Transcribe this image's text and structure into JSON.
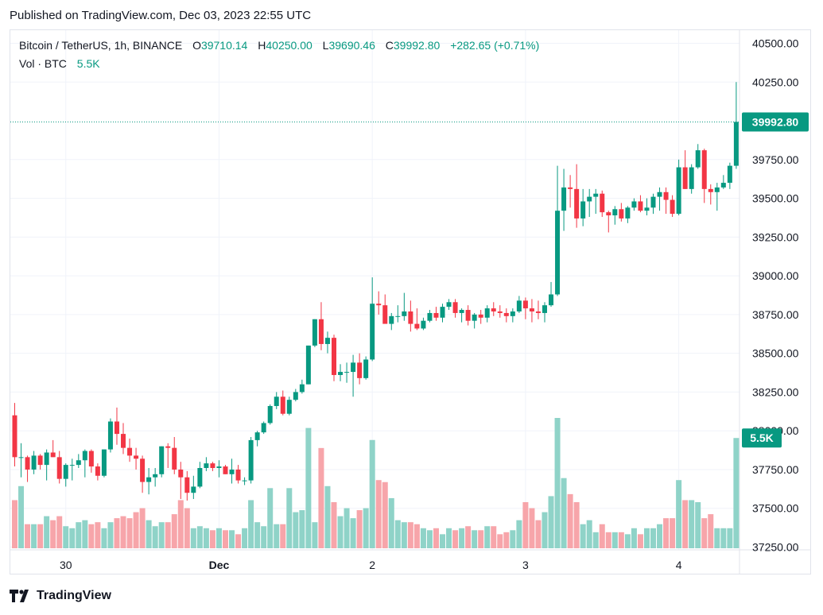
{
  "header": {
    "published": "Published on TradingView.com, Dec 03, 2023 22:55 UTC"
  },
  "legend": {
    "symbol": "Bitcoin / TetherUS, 1h, BINANCE",
    "o_label": "O",
    "o": "39710.14",
    "h_label": "H",
    "h": "40250.00",
    "l_label": "L",
    "l": "39690.46",
    "c_label": "C",
    "c": "39992.80",
    "change": "+282.65 (+0.71%)",
    "vol_label": "Vol · BTC",
    "vol": "5.5K"
  },
  "footer": {
    "brand": "TradingView"
  },
  "colors": {
    "up": "#089981",
    "down": "#f23645",
    "vol_up": "#8fd3c8",
    "vol_down": "#f7a5aa",
    "grid": "#f0f3fa"
  },
  "chart_data": {
    "type": "candlestick",
    "y_ticks": [
      "40500.00",
      "40250.00",
      "39750.00",
      "39500.00",
      "39250.00",
      "39000.00",
      "38750.00",
      "38500.00",
      "38250.00",
      "38000.00",
      "37750.00",
      "37500.00",
      "37250.00"
    ],
    "y_tick_values": [
      40500,
      40250,
      39750,
      39500,
      39250,
      39000,
      38750,
      38500,
      38250,
      38000,
      37750,
      37500,
      37250
    ],
    "ylim": [
      37250,
      40500
    ],
    "x_ticks": [
      {
        "label": "30",
        "hour": 8,
        "bold": false
      },
      {
        "label": "Dec",
        "hour": 32,
        "bold": true
      },
      {
        "label": "2",
        "hour": 56,
        "bold": false
      },
      {
        "label": "3",
        "hour": 80,
        "bold": false
      },
      {
        "label": "4",
        "hour": 104,
        "bold": false
      }
    ],
    "last_price_label": "39992.80",
    "last_price": 39992.8,
    "last_volume_label": "5.5K",
    "volume_axis_max": 6.5,
    "candles": [
      [
        38100,
        38180,
        37770,
        37830,
        2.4
      ],
      [
        37830,
        37920,
        37700,
        37830,
        3.1
      ],
      [
        37830,
        37840,
        37670,
        37750,
        1.2
      ],
      [
        37750,
        37870,
        37720,
        37840,
        1.2
      ],
      [
        37840,
        37850,
        37750,
        37780,
        1.2
      ],
      [
        37780,
        37880,
        37680,
        37860,
        1.6
      ],
      [
        37860,
        37940,
        37830,
        37830,
        1.4
      ],
      [
        37830,
        37870,
        37660,
        37690,
        1.6
      ],
      [
        37690,
        37790,
        37640,
        37780,
        1.1
      ],
      [
        37780,
        37820,
        37680,
        37780,
        1.0
      ],
      [
        37780,
        37850,
        37760,
        37810,
        1.3
      ],
      [
        37810,
        37880,
        37700,
        37870,
        1.4
      ],
      [
        37870,
        37880,
        37730,
        37770,
        1.2
      ],
      [
        37770,
        37790,
        37680,
        37710,
        1.3
      ],
      [
        37710,
        37880,
        37700,
        37880,
        1.0
      ],
      [
        37880,
        38080,
        37860,
        38060,
        1.3
      ],
      [
        38060,
        38150,
        37910,
        37980,
        1.5
      ],
      [
        37980,
        38050,
        37850,
        37890,
        1.6
      ],
      [
        37890,
        37950,
        37800,
        37840,
        1.5
      ],
      [
        37840,
        37890,
        37750,
        37820,
        1.8
      ],
      [
        37820,
        37840,
        37600,
        37670,
        2.0
      ],
      [
        37670,
        37760,
        37590,
        37700,
        1.4
      ],
      [
        37700,
        37760,
        37640,
        37720,
        1.1
      ],
      [
        37720,
        37900,
        37700,
        37900,
        1.3
      ],
      [
        37900,
        37920,
        37760,
        37890,
        1.3
      ],
      [
        37890,
        37960,
        37720,
        37750,
        1.7
      ],
      [
        37750,
        37800,
        37560,
        37700,
        2.4
      ],
      [
        37700,
        37740,
        37550,
        37600,
        2.0
      ],
      [
        37600,
        37710,
        37560,
        37640,
        1.0
      ],
      [
        37640,
        37800,
        37630,
        37760,
        1.1
      ],
      [
        37760,
        37830,
        37740,
        37790,
        1.0
      ],
      [
        37790,
        37800,
        37740,
        37760,
        0.9
      ],
      [
        37760,
        37810,
        37700,
        37770,
        1.0
      ],
      [
        37770,
        37780,
        37720,
        37720,
        0.9
      ],
      [
        37720,
        37820,
        37660,
        37750,
        0.9
      ],
      [
        37750,
        37780,
        37660,
        37680,
        0.7
      ],
      [
        37680,
        37700,
        37650,
        37680,
        1.0
      ],
      [
        37680,
        37960,
        37660,
        37940,
        2.4
      ],
      [
        37940,
        38000,
        37900,
        37990,
        1.3
      ],
      [
        37990,
        38060,
        37980,
        38050,
        1.1
      ],
      [
        38050,
        38170,
        38040,
        38160,
        3.0
      ],
      [
        38160,
        38250,
        38140,
        38220,
        1.2
      ],
      [
        38220,
        38260,
        38100,
        38110,
        1.2
      ],
      [
        38110,
        38220,
        38100,
        38200,
        3.0
      ],
      [
        38200,
        38270,
        38190,
        38250,
        1.8
      ],
      [
        38250,
        38330,
        38240,
        38300,
        1.9
      ],
      [
        38300,
        38550,
        38300,
        38550,
        6.0
      ],
      [
        38550,
        38720,
        38540,
        38720,
        1.3
      ],
      [
        38720,
        38830,
        38520,
        38560,
        5.0
      ],
      [
        38560,
        38640,
        38500,
        38600,
        3.1
      ],
      [
        38600,
        38620,
        38320,
        38360,
        2.3
      ],
      [
        38360,
        38430,
        38320,
        38380,
        1.6
      ],
      [
        38380,
        38440,
        38310,
        38380,
        2.0
      ],
      [
        38380,
        38490,
        38220,
        38440,
        1.5
      ],
      [
        38440,
        38500,
        38300,
        38340,
        1.9
      ],
      [
        38340,
        38480,
        38330,
        38460,
        2.0
      ],
      [
        38460,
        38990,
        38450,
        38820,
        5.4
      ],
      [
        38820,
        38900,
        38750,
        38810,
        3.4
      ],
      [
        38810,
        38880,
        38700,
        38690,
        3.3
      ],
      [
        38690,
        38760,
        38650,
        38740,
        2.5
      ],
      [
        38740,
        38810,
        38700,
        38740,
        1.4
      ],
      [
        38740,
        38890,
        38710,
        38770,
        1.3
      ],
      [
        38770,
        38840,
        38640,
        38690,
        1.3
      ],
      [
        38690,
        38790,
        38650,
        38660,
        1.2
      ],
      [
        38660,
        38730,
        38650,
        38710,
        1.0
      ],
      [
        38710,
        38780,
        38700,
        38760,
        0.9
      ],
      [
        38760,
        38800,
        38710,
        38730,
        1.0
      ],
      [
        38730,
        38820,
        38700,
        38800,
        0.7
      ],
      [
        38800,
        38850,
        38780,
        38830,
        1.0
      ],
      [
        38830,
        38850,
        38730,
        38760,
        0.9
      ],
      [
        38760,
        38790,
        38700,
        38780,
        1.0
      ],
      [
        38780,
        38810,
        38680,
        38710,
        1.1
      ],
      [
        38710,
        38760,
        38660,
        38750,
        0.9
      ],
      [
        38750,
        38780,
        38690,
        38730,
        0.9
      ],
      [
        38730,
        38810,
        38700,
        38790,
        1.1
      ],
      [
        38790,
        38830,
        38740,
        38770,
        1.1
      ],
      [
        38770,
        38810,
        38730,
        38760,
        0.7
      ],
      [
        38760,
        38790,
        38700,
        38740,
        0.8
      ],
      [
        38740,
        38790,
        38700,
        38770,
        0.9
      ],
      [
        38770,
        38870,
        38760,
        38840,
        1.4
      ],
      [
        38840,
        38860,
        38720,
        38790,
        2.3
      ],
      [
        38790,
        38850,
        38700,
        38770,
        2.0
      ],
      [
        38770,
        38840,
        38720,
        38760,
        1.4
      ],
      [
        38760,
        38830,
        38700,
        38810,
        1.8
      ],
      [
        38810,
        38960,
        38800,
        38880,
        2.6
      ],
      [
        38880,
        39710,
        38870,
        39420,
        6.5
      ],
      [
        39420,
        39690,
        39290,
        39570,
        3.5
      ],
      [
        39570,
        39650,
        39440,
        39560,
        2.7
      ],
      [
        39560,
        39720,
        39310,
        39370,
        2.3
      ],
      [
        39370,
        39560,
        39320,
        39480,
        1.2
      ],
      [
        39480,
        39560,
        39380,
        39510,
        1.4
      ],
      [
        39510,
        39560,
        39400,
        39530,
        0.8
      ],
      [
        39530,
        39550,
        39380,
        39410,
        1.2
      ],
      [
        39410,
        39420,
        39280,
        39390,
        0.8
      ],
      [
        39390,
        39450,
        39330,
        39430,
        0.8
      ],
      [
        39430,
        39470,
        39350,
        39370,
        0.8
      ],
      [
        39370,
        39450,
        39340,
        39440,
        0.7
      ],
      [
        39440,
        39500,
        39420,
        39480,
        1.0
      ],
      [
        39480,
        39520,
        39410,
        39420,
        0.7
      ],
      [
        39420,
        39500,
        39390,
        39440,
        1.0
      ],
      [
        39440,
        39530,
        39400,
        39510,
        1.0
      ],
      [
        39510,
        39570,
        39420,
        39540,
        1.2
      ],
      [
        39540,
        39570,
        39400,
        39490,
        1.5
      ],
      [
        39490,
        39520,
        39380,
        39400,
        1.5
      ],
      [
        39400,
        39750,
        39390,
        39700,
        3.4
      ],
      [
        39700,
        39810,
        39560,
        39560,
        2.4
      ],
      [
        39560,
        39720,
        39530,
        39700,
        2.4
      ],
      [
        39700,
        39850,
        39690,
        39810,
        2.3
      ],
      [
        39810,
        39820,
        39470,
        39560,
        1.5
      ],
      [
        39560,
        39590,
        39460,
        39540,
        1.7
      ],
      [
        39540,
        39600,
        39420,
        39570,
        1.0
      ],
      [
        39570,
        39650,
        39560,
        39600,
        1.0
      ],
      [
        39600,
        39730,
        39560,
        39710,
        1.0
      ],
      [
        39710,
        40250,
        39690,
        39992.8,
        5.5
      ]
    ]
  }
}
